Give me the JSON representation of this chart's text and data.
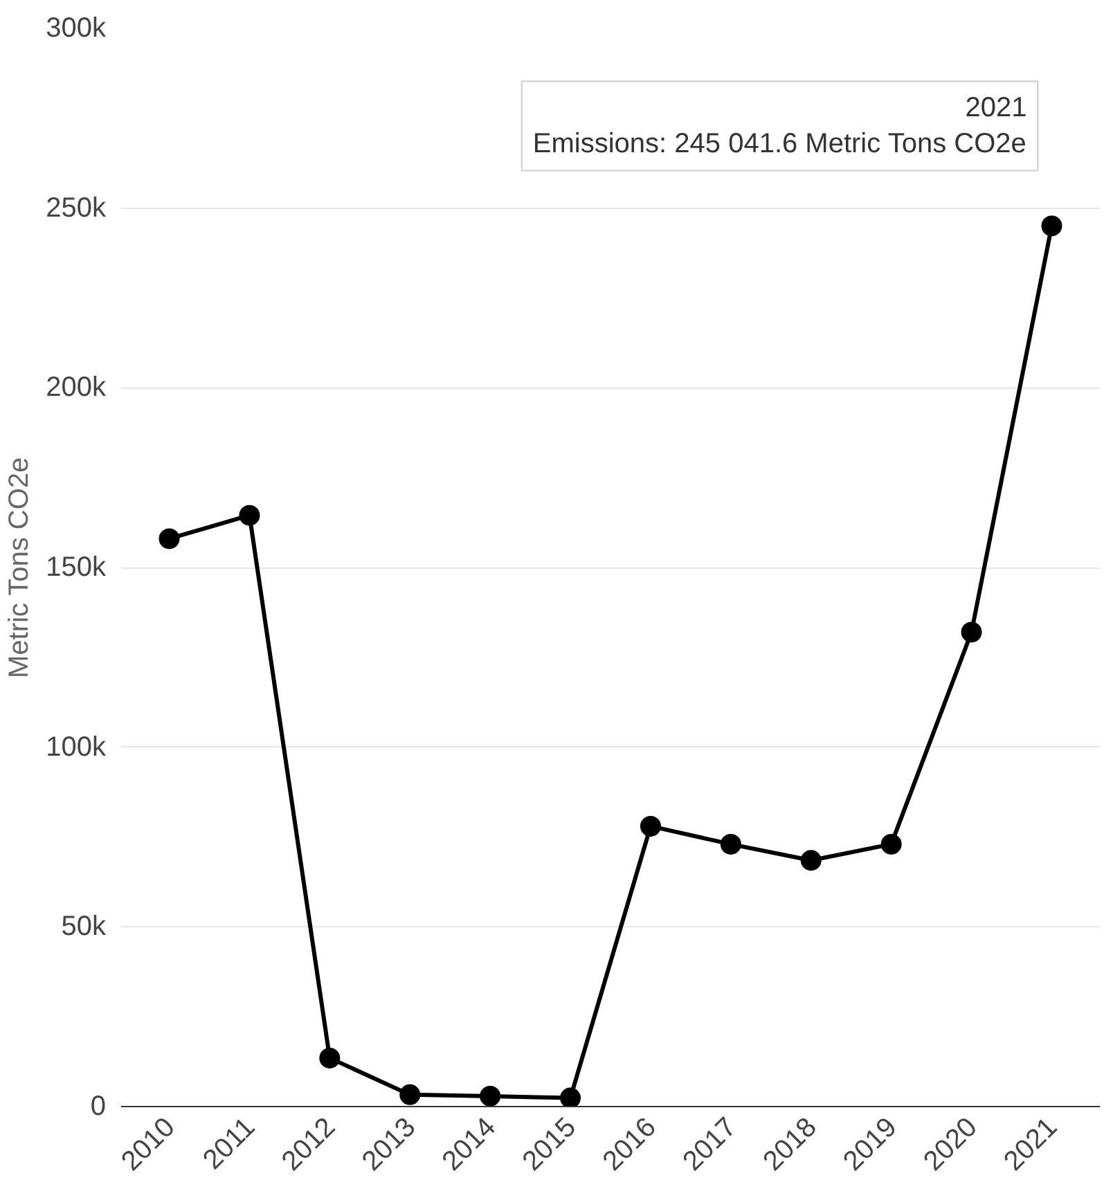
{
  "chart_data": {
    "type": "line",
    "ylabel": "Metric Tons CO2e",
    "categories": [
      "2010",
      "2011",
      "2012",
      "2013",
      "2014",
      "2015",
      "2016",
      "2017",
      "2018",
      "2019",
      "2020",
      "2021"
    ],
    "series": [
      {
        "color": "#000000",
        "values": [
          158000,
          164500,
          13500,
          3300,
          2900,
          2400,
          78000,
          73000,
          68500,
          73000,
          132000,
          245041.6
        ]
      }
    ],
    "ylim": [
      0,
      300000
    ],
    "yticks": [
      {
        "value": 0,
        "label": "0"
      },
      {
        "value": 50000,
        "label": "50k"
      },
      {
        "value": 100000,
        "label": "100k"
      },
      {
        "value": 150000,
        "label": "150k"
      },
      {
        "value": 200000,
        "label": "200k"
      },
      {
        "value": 250000,
        "label": "250k"
      },
      {
        "value": 300000,
        "label": "300k"
      }
    ],
    "grid": "y",
    "marker": "circle",
    "line_style": "solid",
    "annotations": [
      {
        "text": "2021\nEmissions: 245 041.6 Metric Tons CO2e",
        "x": "2021",
        "y": 245041.6
      }
    ]
  }
}
